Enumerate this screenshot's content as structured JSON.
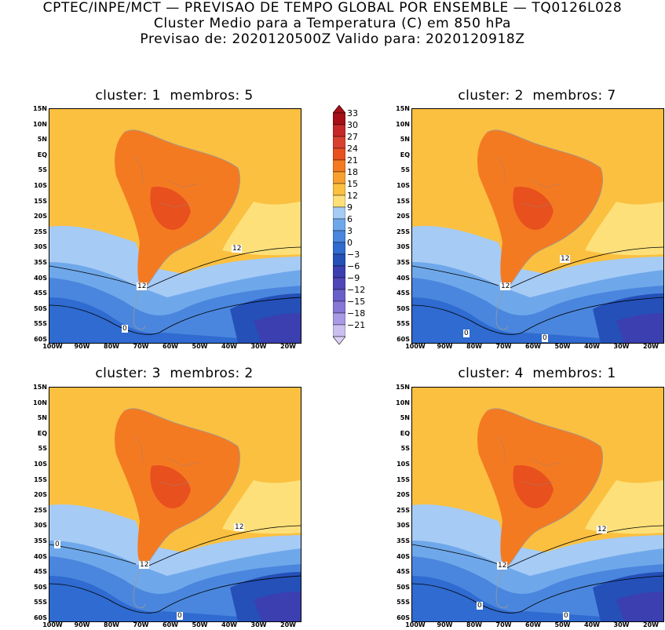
{
  "header": {
    "line1": "CPTEC/INPE/MCT — PREVISAO DE TEMPO GLOBAL POR ENSEMBLE — TQ0126L028",
    "line2": "Cluster Medio para a Temperatura (C) em 850 hPa",
    "line3": "Previsao de: 2020120500Z   Valido para: 2020120918Z"
  },
  "panels": [
    {
      "title": "cluster: 1  membros: 5",
      "labels": [
        "12",
        "12",
        "0"
      ]
    },
    {
      "title": "cluster: 2  membros: 7",
      "labels": [
        "12",
        "12",
        "0",
        "0"
      ]
    },
    {
      "title": "cluster: 3  membros: 2",
      "labels": [
        "12",
        "12",
        "0",
        "0"
      ]
    },
    {
      "title": "cluster: 4  membros: 1",
      "labels": [
        "12",
        "12",
        "0",
        "0"
      ]
    }
  ],
  "axes": {
    "lat_labels": [
      "15N",
      "10N",
      "5N",
      "EQ",
      "5S",
      "10S",
      "15S",
      "20S",
      "25S",
      "30S",
      "35S",
      "40S",
      "45S",
      "50S",
      "55S",
      "60S"
    ],
    "lon_labels": [
      "100W",
      "90W",
      "80W",
      "70W",
      "60W",
      "50W",
      "40W",
      "30W",
      "20W"
    ]
  },
  "colorbar": {
    "levels": [
      "33",
      "30",
      "27",
      "24",
      "21",
      "18",
      "15",
      "12",
      "9",
      "6",
      "3",
      "0",
      "-3",
      "-6",
      "-9",
      "-12",
      "-15",
      "-18",
      "-21"
    ],
    "colors": [
      "#a50f15",
      "#c62828",
      "#d84030",
      "#e8501e",
      "#f47a22",
      "#f7a030",
      "#fbc040",
      "#fde07a",
      "#a6cbf5",
      "#6fa8ea",
      "#4a86dd",
      "#2f6bd0",
      "#2450b8",
      "#3b3fb0",
      "#5146b8",
      "#6a5fc8",
      "#8778d6",
      "#a89ae4",
      "#cac0f0"
    ]
  }
}
